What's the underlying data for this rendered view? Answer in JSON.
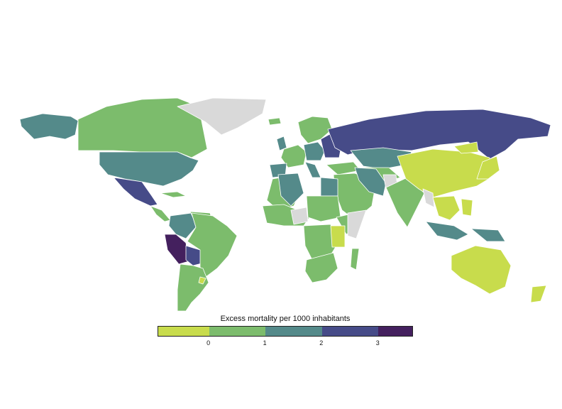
{
  "legend": {
    "title": "Excess mortality per 1000 inhabitants",
    "colors": [
      "#c8dc4c",
      "#7cbc6c",
      "#548a8a",
      "#464b88",
      "#44205e"
    ],
    "bins": [
      [
        -1,
        0
      ],
      [
        0,
        1
      ],
      [
        1,
        2
      ],
      [
        2,
        3
      ],
      [
        3,
        3.6
      ]
    ],
    "ticks": [
      {
        "value": 0,
        "label": "0"
      },
      {
        "value": 1,
        "label": "1"
      },
      {
        "value": 2,
        "label": "2"
      },
      {
        "value": 3,
        "label": "3"
      }
    ],
    "range": [
      -0.9,
      3.6
    ]
  },
  "no_data_color": "#d9d9d9",
  "regions": [
    {
      "name": "alaska",
      "color": "#548a8a"
    },
    {
      "name": "canada",
      "color": "#7cbc6c"
    },
    {
      "name": "greenland",
      "color": "#d9d9d9"
    },
    {
      "name": "united-states",
      "color": "#548a8a"
    },
    {
      "name": "mexico",
      "color": "#464b88"
    },
    {
      "name": "central-america",
      "color": "#7cbc6c"
    },
    {
      "name": "cuba",
      "color": "#7cbc6c"
    },
    {
      "name": "colombia",
      "color": "#548a8a"
    },
    {
      "name": "venezuela",
      "color": "#7cbc6c"
    },
    {
      "name": "peru",
      "color": "#44205e"
    },
    {
      "name": "bolivia",
      "color": "#464b88"
    },
    {
      "name": "brazil",
      "color": "#7cbc6c"
    },
    {
      "name": "argentina-chile",
      "color": "#7cbc6c"
    },
    {
      "name": "uruguay",
      "color": "#c8dc4c"
    },
    {
      "name": "iceland",
      "color": "#7cbc6c"
    },
    {
      "name": "scandinavia",
      "color": "#7cbc6c"
    },
    {
      "name": "uk",
      "color": "#548a8a"
    },
    {
      "name": "western-europe",
      "color": "#7cbc6c"
    },
    {
      "name": "central-europe",
      "color": "#548a8a"
    },
    {
      "name": "eastern-europe",
      "color": "#464b88"
    },
    {
      "name": "iberia",
      "color": "#548a8a"
    },
    {
      "name": "italy",
      "color": "#548a8a"
    },
    {
      "name": "russia",
      "color": "#464b88"
    },
    {
      "name": "kazakhstan",
      "color": "#548a8a"
    },
    {
      "name": "central-asia",
      "color": "#7cbc6c"
    },
    {
      "name": "turkey",
      "color": "#7cbc6c"
    },
    {
      "name": "middle-east",
      "color": "#7cbc6c"
    },
    {
      "name": "iran",
      "color": "#548a8a"
    },
    {
      "name": "afghanistan",
      "color": "#d9d9d9"
    },
    {
      "name": "south-asia",
      "color": "#7cbc6c"
    },
    {
      "name": "china",
      "color": "#c8dc4c"
    },
    {
      "name": "mongolia-border",
      "color": "#c8dc4c"
    },
    {
      "name": "korea-japan",
      "color": "#c8dc4c"
    },
    {
      "name": "myanmar",
      "color": "#d9d9d9"
    },
    {
      "name": "southeast-asia",
      "color": "#c8dc4c"
    },
    {
      "name": "philippines",
      "color": "#c8dc4c"
    },
    {
      "name": "indonesia",
      "color": "#548a8a"
    },
    {
      "name": "papua",
      "color": "#548a8a"
    },
    {
      "name": "north-africa",
      "color": "#7cbc6c"
    },
    {
      "name": "libya",
      "color": "#548a8a"
    },
    {
      "name": "egypt",
      "color": "#548a8a"
    },
    {
      "name": "west-africa",
      "color": "#7cbc6c"
    },
    {
      "name": "chad",
      "color": "#d9d9d9"
    },
    {
      "name": "sudan",
      "color": "#7cbc6c"
    },
    {
      "name": "ethiopia",
      "color": "#7cbc6c"
    },
    {
      "name": "somalia",
      "color": "#d9d9d9"
    },
    {
      "name": "central-africa",
      "color": "#7cbc6c"
    },
    {
      "name": "tanzania",
      "color": "#c8dc4c"
    },
    {
      "name": "southern-africa",
      "color": "#7cbc6c"
    },
    {
      "name": "madagascar",
      "color": "#7cbc6c"
    },
    {
      "name": "australia",
      "color": "#c8dc4c"
    },
    {
      "name": "new-zealand",
      "color": "#c8dc4c"
    }
  ]
}
